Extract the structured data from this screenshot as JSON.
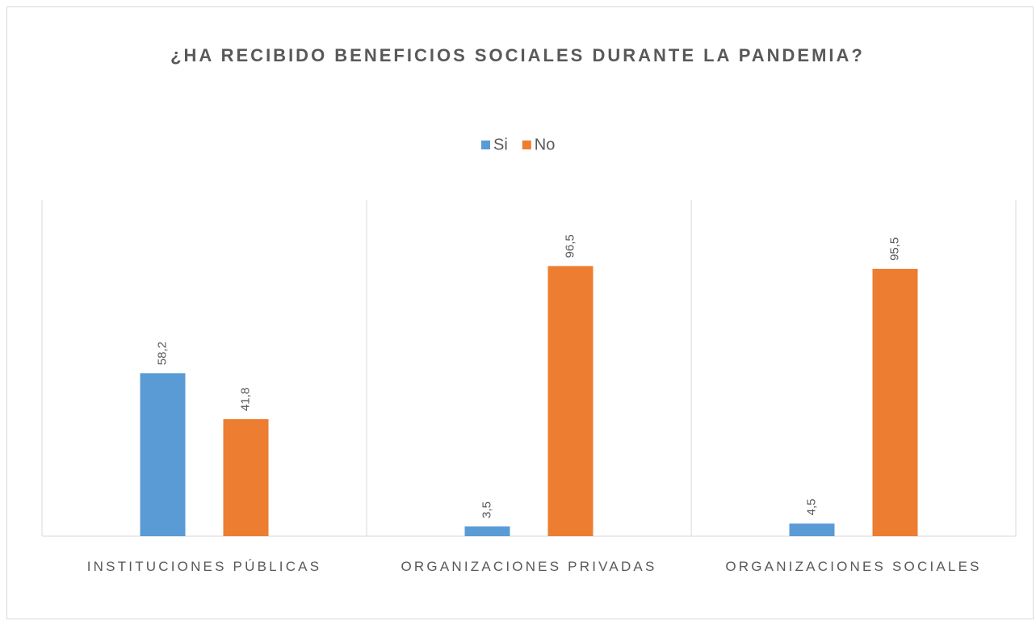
{
  "chart_data": {
    "type": "bar",
    "title": "¿HA RECIBIDO BENEFICIOS SOCIALES DURANTE LA PANDEMIA?",
    "categories": [
      "INSTITUCIONES PÚBLICAS",
      "ORGANIZACIONES PRIVADAS",
      "ORGANIZACIONES SOCIALES"
    ],
    "series": [
      {
        "name": "Si",
        "color": "#5b9bd5",
        "values": [
          58.2,
          3.5,
          4.5
        ],
        "value_labels": [
          "58,2",
          "3,5",
          "4,5"
        ]
      },
      {
        "name": "No",
        "color": "#ed7d31",
        "values": [
          41.8,
          96.5,
          95.5
        ],
        "value_labels": [
          "41,8",
          "96,5",
          "95,5"
        ]
      }
    ],
    "ylim": [
      0,
      120
    ],
    "legend": "top",
    "category_separators": true
  }
}
